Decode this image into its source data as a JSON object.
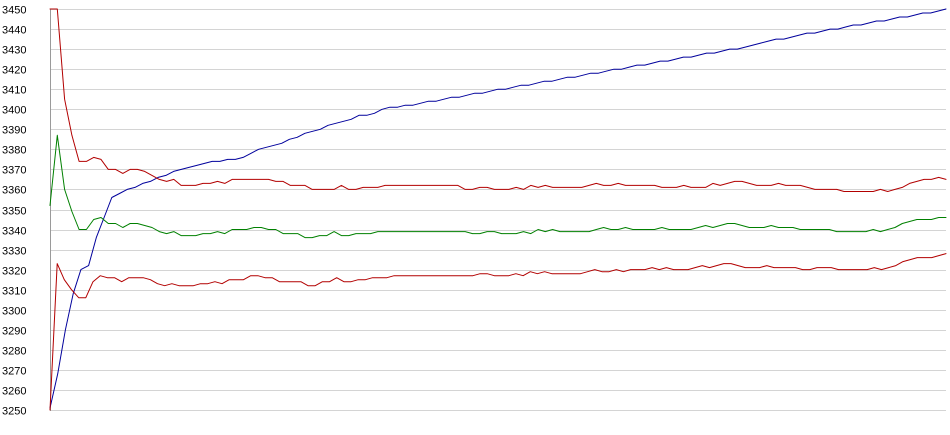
{
  "chart_data": {
    "type": "line",
    "title": "",
    "xlabel": "",
    "ylabel": "",
    "ylim": [
      3250,
      3450
    ],
    "y_ticks": [
      3250,
      3260,
      3270,
      3280,
      3290,
      3300,
      3310,
      3320,
      3330,
      3340,
      3350,
      3360,
      3370,
      3380,
      3390,
      3400,
      3410,
      3420,
      3430,
      3440,
      3450
    ],
    "grid": true,
    "legend": "none",
    "x_ticks_shown": false,
    "series": [
      {
        "color": "#00009c",
        "values": [
          3251,
          3268,
          3290,
          3308,
          3320,
          3322,
          3336,
          3346,
          3356,
          3358,
          3360,
          3361,
          3363,
          3364,
          3366,
          3367,
          3369,
          3370,
          3371,
          3372,
          3373,
          3374,
          3374,
          3375,
          3375,
          3376,
          3378,
          3380,
          3381,
          3382,
          3383,
          3385,
          3386,
          3388,
          3389,
          3390,
          3392,
          3393,
          3394,
          3395,
          3397,
          3397,
          3398,
          3400,
          3401,
          3401,
          3402,
          3402,
          3403,
          3404,
          3404,
          3405,
          3406,
          3406,
          3407,
          3408,
          3408,
          3409,
          3410,
          3410,
          3411,
          3412,
          3412,
          3413,
          3414,
          3414,
          3415,
          3416,
          3416,
          3417,
          3418,
          3418,
          3419,
          3420,
          3420,
          3421,
          3422,
          3422,
          3423,
          3424,
          3424,
          3425,
          3426,
          3426,
          3427,
          3428,
          3428,
          3429,
          3430,
          3430,
          3431,
          3432,
          3433,
          3434,
          3435,
          3435,
          3436,
          3437,
          3438,
          3438,
          3439,
          3440,
          3440,
          3441,
          3442,
          3442,
          3443,
          3444,
          3444,
          3445,
          3446,
          3446,
          3447,
          3448,
          3448,
          3449,
          3450
        ]
      },
      {
        "color": "#b20000",
        "values": [
          3250,
          3323,
          3315,
          3310,
          3306,
          3306,
          3314,
          3317,
          3316,
          3316,
          3314,
          3316,
          3316,
          3316,
          3315,
          3313,
          3312,
          3313,
          3312,
          3312,
          3312,
          3313,
          3313,
          3314,
          3313,
          3315,
          3315,
          3315,
          3317,
          3317,
          3316,
          3316,
          3314,
          3314,
          3314,
          3314,
          3312,
          3312,
          3314,
          3314,
          3316,
          3314,
          3314,
          3315,
          3315,
          3316,
          3316,
          3316,
          3317,
          3317,
          3317,
          3317,
          3317,
          3317,
          3317,
          3317,
          3317,
          3317,
          3317,
          3317,
          3318,
          3318,
          3317,
          3317,
          3317,
          3318,
          3317,
          3319,
          3318,
          3319,
          3318,
          3318,
          3318,
          3318,
          3318,
          3319,
          3320,
          3319,
          3319,
          3320,
          3319,
          3320,
          3320,
          3320,
          3321,
          3320,
          3321,
          3320,
          3320,
          3320,
          3321,
          3322,
          3321,
          3322,
          3323,
          3323,
          3322,
          3321,
          3321,
          3321,
          3322,
          3321,
          3321,
          3321,
          3321,
          3320,
          3320,
          3321,
          3321,
          3321,
          3320,
          3320,
          3320,
          3320,
          3320,
          3321,
          3320,
          3321,
          3322,
          3324,
          3325,
          3326,
          3326,
          3326,
          3327,
          3328
        ]
      },
      {
        "color": "#008000",
        "values": [
          3352,
          3387,
          3360,
          3349,
          3340,
          3340,
          3345,
          3346,
          3343,
          3343,
          3341,
          3343,
          3343,
          3342,
          3341,
          3339,
          3338,
          3339,
          3337,
          3337,
          3337,
          3338,
          3338,
          3339,
          3338,
          3340,
          3340,
          3340,
          3341,
          3341,
          3340,
          3340,
          3338,
          3338,
          3338,
          3336,
          3336,
          3337,
          3337,
          3339,
          3337,
          3337,
          3338,
          3338,
          3338,
          3339,
          3339,
          3339,
          3339,
          3339,
          3339,
          3339,
          3339,
          3339,
          3339,
          3339,
          3339,
          3339,
          3338,
          3338,
          3339,
          3339,
          3338,
          3338,
          3338,
          3339,
          3338,
          3340,
          3339,
          3340,
          3339,
          3339,
          3339,
          3339,
          3339,
          3340,
          3341,
          3340,
          3340,
          3341,
          3340,
          3340,
          3340,
          3340,
          3341,
          3340,
          3340,
          3340,
          3340,
          3341,
          3342,
          3341,
          3342,
          3343,
          3343,
          3342,
          3341,
          3341,
          3341,
          3342,
          3341,
          3341,
          3341,
          3340,
          3340,
          3340,
          3340,
          3340,
          3339,
          3339,
          3339,
          3339,
          3339,
          3340,
          3339,
          3340,
          3341,
          3343,
          3344,
          3345,
          3345,
          3345,
          3346,
          3346
        ]
      },
      {
        "color": "#b20000",
        "values": [
          3450,
          3450,
          3405,
          3387,
          3374,
          3374,
          3376,
          3375,
          3370,
          3370,
          3368,
          3370,
          3370,
          3369,
          3367,
          3365,
          3364,
          3365,
          3362,
          3362,
          3362,
          3363,
          3363,
          3364,
          3363,
          3365,
          3365,
          3365,
          3365,
          3365,
          3365,
          3364,
          3364,
          3362,
          3362,
          3362,
          3360,
          3360,
          3360,
          3360,
          3362,
          3360,
          3360,
          3361,
          3361,
          3361,
          3362,
          3362,
          3362,
          3362,
          3362,
          3362,
          3362,
          3362,
          3362,
          3362,
          3362,
          3360,
          3360,
          3361,
          3361,
          3360,
          3360,
          3360,
          3361,
          3360,
          3362,
          3361,
          3362,
          3361,
          3361,
          3361,
          3361,
          3361,
          3362,
          3363,
          3362,
          3362,
          3363,
          3362,
          3362,
          3362,
          3362,
          3362,
          3361,
          3361,
          3361,
          3362,
          3361,
          3361,
          3361,
          3363,
          3362,
          3363,
          3364,
          3364,
          3363,
          3362,
          3362,
          3362,
          3363,
          3362,
          3362,
          3362,
          3361,
          3360,
          3360,
          3360,
          3360,
          3359,
          3359,
          3359,
          3359,
          3359,
          3360,
          3359,
          3360,
          3361,
          3363,
          3364,
          3365,
          3365,
          3366,
          3365
        ]
      }
    ]
  }
}
